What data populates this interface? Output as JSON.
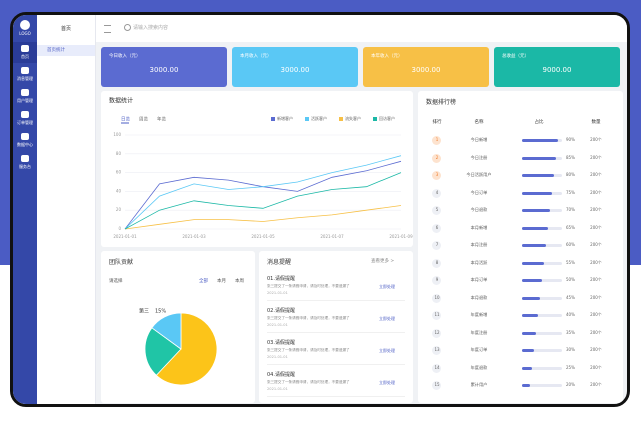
{
  "sidebar": {
    "logo": "LOGO",
    "items": [
      "首页",
      "消息管理",
      "用户管理",
      "订单管理",
      "数据中心",
      "服务台"
    ]
  },
  "submenu": {
    "title": "首页",
    "items": [
      "首页统计"
    ]
  },
  "search": {
    "placeholder": "请输入搜索内容"
  },
  "cards": [
    {
      "label": "今日收入（元）",
      "value": "3000.00",
      "color": "#5b6bd1"
    },
    {
      "label": "本月收入（元）",
      "value": "3000.00",
      "color": "#5ac8f5"
    },
    {
      "label": "本年收入（元）",
      "value": "3000.00",
      "color": "#f7c046"
    },
    {
      "label": "总收益（元）",
      "value": "9000.00",
      "color": "#1bb8a6"
    }
  ],
  "chart_data": [
    {
      "type": "line",
      "title": "数据统计",
      "tabs": [
        "日览",
        "周览",
        "年览"
      ],
      "categories": [
        "2021-01-01",
        null,
        "2021-01-03",
        null,
        "2021-01-05",
        null,
        "2021-01-07",
        null,
        "2021-01-09"
      ],
      "series": [
        {
          "name": "新增客户",
          "color": "#5b6bd1",
          "values": [
            0,
            48,
            55,
            52,
            45,
            40,
            55,
            62,
            72
          ]
        },
        {
          "name": "活跃客户",
          "color": "#5ac8f5",
          "values": [
            0,
            35,
            48,
            42,
            45,
            50,
            60,
            68,
            78
          ]
        },
        {
          "name": "流失客户",
          "color": "#f7c046",
          "values": [
            0,
            5,
            10,
            10,
            8,
            12,
            15,
            20,
            25
          ]
        },
        {
          "name": "回访客户",
          "color": "#1bb8a6",
          "values": [
            0,
            20,
            30,
            25,
            22,
            35,
            42,
            45,
            60
          ]
        }
      ],
      "ylim": [
        0,
        100
      ],
      "yticks": [
        0,
        20,
        40,
        60,
        80,
        100
      ],
      "grid": true
    },
    {
      "type": "pie",
      "title": "团队贡献",
      "select": "请选择",
      "tabs": [
        "全部",
        "本月",
        "本周"
      ],
      "categories": [
        null,
        null,
        "第三"
      ],
      "values": [
        62,
        23,
        15
      ],
      "value_labels": [
        null,
        null,
        "15%"
      ],
      "colors": [
        "#fcc419",
        "#20c5a6",
        "#5ac8f5"
      ]
    }
  ],
  "ranking": {
    "title": "数据排行榜",
    "headers": [
      "排行",
      "名称",
      "占比",
      "数量"
    ],
    "rows": [
      {
        "rank": "1",
        "name": "今日新增",
        "share": 90,
        "share_label": "90%",
        "count": "200个"
      },
      {
        "rank": "2",
        "name": "今日注册",
        "share": 85,
        "share_label": "85%",
        "count": "200个"
      },
      {
        "rank": "3",
        "name": "今日活跃用户",
        "share": 80,
        "share_label": "80%",
        "count": "200个"
      },
      {
        "rank": "4",
        "name": "今日订单",
        "share": 75,
        "share_label": "75%",
        "count": "200个"
      },
      {
        "rank": "5",
        "name": "今日退款",
        "share": 70,
        "share_label": "70%",
        "count": "200个"
      },
      {
        "rank": "6",
        "name": "本月新增",
        "share": 65,
        "share_label": "65%",
        "count": "200个"
      },
      {
        "rank": "7",
        "name": "本月注册",
        "share": 60,
        "share_label": "60%",
        "count": "200个"
      },
      {
        "rank": "8",
        "name": "本月活跃",
        "share": 55,
        "share_label": "55%",
        "count": "200个"
      },
      {
        "rank": "9",
        "name": "本月订单",
        "share": 50,
        "share_label": "50%",
        "count": "200个"
      },
      {
        "rank": "10",
        "name": "本月退款",
        "share": 45,
        "share_label": "45%",
        "count": "200个"
      },
      {
        "rank": "11",
        "name": "年度新增",
        "share": 40,
        "share_label": "40%",
        "count": "200个"
      },
      {
        "rank": "12",
        "name": "年度注册",
        "share": 35,
        "share_label": "35%",
        "count": "200个"
      },
      {
        "rank": "13",
        "name": "年度订单",
        "share": 30,
        "share_label": "30%",
        "count": "200个"
      },
      {
        "rank": "14",
        "name": "年度退款",
        "share": 25,
        "share_label": "25%",
        "count": "200个"
      },
      {
        "rank": "15",
        "name": "累计用户",
        "share": 20,
        "share_label": "20%",
        "count": "200个"
      }
    ]
  },
  "messages": {
    "title": "消息提醒",
    "more": "查看更多 >",
    "items": [
      {
        "title": "01.请假提醒",
        "desc": "张三提交了一条请假申请，请及时处理，不要遗漏了",
        "date": "2021-01-01",
        "action": "立即处理"
      },
      {
        "title": "02.请假提醒",
        "desc": "张三提交了一条请假申请，请及时处理，不要遗漏了",
        "date": "2021-01-01",
        "action": "立即处理"
      },
      {
        "title": "03.请假提醒",
        "desc": "张三提交了一条请假申请，请及时处理，不要遗漏了",
        "date": "2021-01-01",
        "action": "立即处理"
      },
      {
        "title": "04.请假提醒",
        "desc": "张三提交了一条请假申请，请及时处理，不要遗漏了",
        "date": "2021-01-01",
        "action": "立即处理"
      }
    ]
  }
}
